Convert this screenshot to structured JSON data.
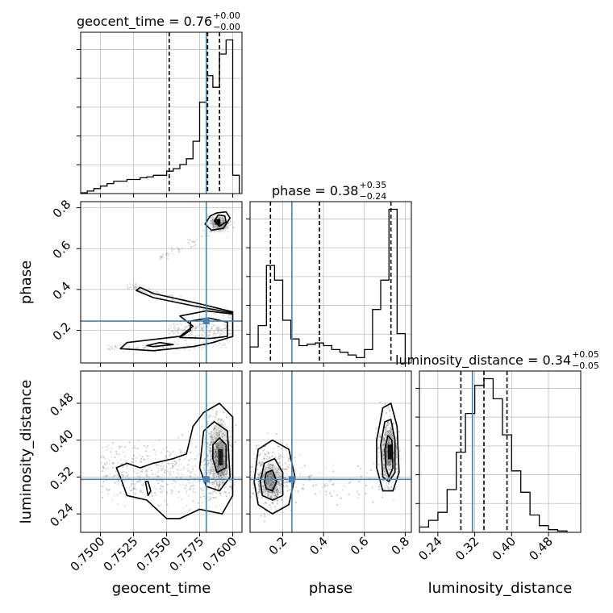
{
  "chart_data": {
    "type": "corner",
    "parameters": [
      "geocent_time",
      "phase",
      "luminosity_distance"
    ],
    "colors": {
      "truth": "#4682b4",
      "hist": "#000000",
      "grid": "#bdbdbd",
      "quantile": "#000000",
      "scatter": "#7f7f7f"
    },
    "grid": true,
    "titles": [
      {
        "param": "geocent_time",
        "value": "0.76",
        "plus": "+0.00",
        "minus": "−0.00"
      },
      {
        "param": "phase",
        "value": "0.38",
        "plus": "+0.35",
        "minus": "−0.24"
      },
      {
        "param": "luminosity_distance",
        "value": "0.34",
        "plus": "+0.05",
        "minus": "−0.05"
      }
    ],
    "truths": {
      "geocent_time": 0.758,
      "phase": 0.245,
      "luminosity_distance": 0.315
    },
    "axes": {
      "geocent_time": {
        "range": [
          0.7485,
          0.7607
        ],
        "ticks": [
          0.75,
          0.7525,
          0.755,
          0.7575,
          0.76
        ],
        "tick_labels": [
          "0.7500",
          "0.7525",
          "0.7550",
          "0.7575",
          "0.7600"
        ]
      },
      "phase": {
        "range": [
          0.04,
          0.83
        ],
        "ticks": [
          0.2,
          0.4,
          0.6,
          0.8
        ],
        "tick_labels": [
          "0.2",
          "0.4",
          "0.6",
          "0.8"
        ]
      },
      "luminosity_distance": {
        "range": [
          0.2,
          0.55
        ],
        "ticks": [
          0.24,
          0.32,
          0.4,
          0.48
        ],
        "tick_labels": [
          "0.24",
          "0.32",
          "0.40",
          "0.48"
        ]
      }
    },
    "histograms": {
      "geocent_time": {
        "bin_edges": [
          0.7485,
          0.749,
          0.7495,
          0.75,
          0.7505,
          0.751,
          0.7515,
          0.752,
          0.7525,
          0.753,
          0.7535,
          0.754,
          0.7545,
          0.755,
          0.7555,
          0.756,
          0.7565,
          0.757,
          0.7575,
          0.758,
          0.7585,
          0.759,
          0.7595,
          0.76,
          0.7605
        ],
        "counts": [
          1,
          3,
          6,
          9,
          12,
          15,
          15,
          17,
          17,
          19,
          20,
          22,
          22,
          27,
          30,
          35,
          42,
          63,
          110,
          142,
          128,
          168,
          185,
          22
        ],
        "quantiles": [
          0.7552,
          0.7581,
          0.759
        ]
      },
      "phase": {
        "bin_edges": [
          0.04,
          0.08,
          0.12,
          0.16,
          0.2,
          0.24,
          0.28,
          0.32,
          0.36,
          0.4,
          0.44,
          0.48,
          0.52,
          0.56,
          0.6,
          0.64,
          0.68,
          0.72,
          0.76,
          0.8
        ],
        "counts": [
          12,
          28,
          73,
          62,
          32,
          18,
          13,
          14,
          15,
          13,
          10,
          8,
          6,
          4,
          10,
          40,
          62,
          115,
          22
        ],
        "quantiles": [
          0.14,
          0.38,
          0.73
        ]
      },
      "luminosity_distance": {
        "bin_edges": [
          0.2,
          0.22,
          0.24,
          0.26,
          0.28,
          0.3,
          0.32,
          0.34,
          0.36,
          0.38,
          0.4,
          0.42,
          0.44,
          0.46,
          0.48,
          0.5,
          0.52
        ],
        "counts": [
          4,
          9,
          15,
          32,
          60,
          89,
          110,
          115,
          100,
          73,
          46,
          30,
          13,
          5,
          2,
          1
        ],
        "quantiles": [
          0.29,
          0.34,
          0.39
        ]
      }
    },
    "contours": {
      "phase_vs_geocent_time": [
        [
          [
            0.7583,
            0.76
          ],
          [
            0.7588,
            0.775
          ],
          [
            0.7595,
            0.78
          ],
          [
            0.7598,
            0.75
          ],
          [
            0.7593,
            0.7
          ],
          [
            0.7584,
            0.69
          ],
          [
            0.7579,
            0.72
          ],
          [
            0.7583,
            0.76
          ]
        ],
        [
          [
            0.7586,
            0.735
          ],
          [
            0.7589,
            0.765
          ],
          [
            0.7594,
            0.76
          ],
          [
            0.7595,
            0.73
          ],
          [
            0.759,
            0.71
          ],
          [
            0.7586,
            0.735
          ]
        ],
        [
          [
            0.7527,
            0.395
          ],
          [
            0.753,
            0.41
          ],
          [
            0.754,
            0.38
          ],
          [
            0.7575,
            0.33
          ],
          [
            0.76,
            0.29
          ],
          [
            0.76,
            0.285
          ],
          [
            0.757,
            0.32
          ],
          [
            0.754,
            0.36
          ],
          [
            0.7527,
            0.395
          ]
        ],
        [
          [
            0.756,
            0.27
          ],
          [
            0.758,
            0.295
          ],
          [
            0.76,
            0.28
          ],
          [
            0.76,
            0.17
          ],
          [
            0.7585,
            0.14
          ],
          [
            0.757,
            0.12
          ],
          [
            0.754,
            0.1
          ],
          [
            0.7515,
            0.11
          ],
          [
            0.752,
            0.14
          ],
          [
            0.756,
            0.17
          ],
          [
            0.757,
            0.22
          ],
          [
            0.756,
            0.27
          ]
        ],
        [
          [
            0.7568,
            0.245
          ],
          [
            0.7582,
            0.26
          ],
          [
            0.7596,
            0.24
          ],
          [
            0.7596,
            0.17
          ],
          [
            0.7583,
            0.16
          ],
          [
            0.756,
            0.165
          ],
          [
            0.7568,
            0.2
          ],
          [
            0.7568,
            0.245
          ]
        ],
        [
          [
            0.754,
            0.12
          ],
          [
            0.7555,
            0.13
          ],
          [
            0.7545,
            0.14
          ],
          [
            0.7535,
            0.125
          ],
          [
            0.754,
            0.12
          ]
        ]
      ],
      "luminosity_distance_vs_geocent_time": [
        [
          [
            0.757,
            0.43
          ],
          [
            0.7578,
            0.46
          ],
          [
            0.759,
            0.48
          ],
          [
            0.76,
            0.45
          ],
          [
            0.76,
            0.28
          ],
          [
            0.7592,
            0.24
          ],
          [
            0.7575,
            0.25
          ],
          [
            0.756,
            0.23
          ],
          [
            0.755,
            0.23
          ],
          [
            0.7535,
            0.27
          ],
          [
            0.752,
            0.28
          ],
          [
            0.7515,
            0.32
          ],
          [
            0.7512,
            0.34
          ],
          [
            0.752,
            0.35
          ],
          [
            0.753,
            0.34
          ],
          [
            0.754,
            0.35
          ],
          [
            0.7555,
            0.36
          ],
          [
            0.7565,
            0.37
          ],
          [
            0.757,
            0.43
          ]
        ],
        [
          [
            0.7578,
            0.42
          ],
          [
            0.7586,
            0.44
          ],
          [
            0.7596,
            0.42
          ],
          [
            0.7598,
            0.32
          ],
          [
            0.759,
            0.29
          ],
          [
            0.758,
            0.3
          ],
          [
            0.7575,
            0.34
          ],
          [
            0.7578,
            0.42
          ]
        ],
        [
          [
            0.7585,
            0.39
          ],
          [
            0.759,
            0.405
          ],
          [
            0.7595,
            0.39
          ],
          [
            0.7595,
            0.34
          ],
          [
            0.7588,
            0.33
          ],
          [
            0.7585,
            0.36
          ],
          [
            0.7585,
            0.39
          ]
        ],
        [
          [
            0.7534,
            0.31
          ],
          [
            0.7536,
            0.28
          ],
          [
            0.7538,
            0.29
          ],
          [
            0.7536,
            0.31
          ],
          [
            0.7534,
            0.31
          ]
        ]
      ],
      "luminosity_distance_vs_phase": [
        [
          [
            0.06,
            0.31
          ],
          [
            0.08,
            0.38
          ],
          [
            0.15,
            0.4
          ],
          [
            0.23,
            0.38
          ],
          [
            0.26,
            0.32
          ],
          [
            0.23,
            0.26
          ],
          [
            0.15,
            0.24
          ],
          [
            0.08,
            0.26
          ],
          [
            0.06,
            0.31
          ]
        ],
        [
          [
            0.09,
            0.31
          ],
          [
            0.11,
            0.35
          ],
          [
            0.16,
            0.36
          ],
          [
            0.2,
            0.33
          ],
          [
            0.2,
            0.28
          ],
          [
            0.15,
            0.27
          ],
          [
            0.1,
            0.28
          ],
          [
            0.09,
            0.31
          ]
        ],
        [
          [
            0.11,
            0.31
          ],
          [
            0.12,
            0.33
          ],
          [
            0.15,
            0.335
          ],
          [
            0.17,
            0.31
          ],
          [
            0.15,
            0.29
          ],
          [
            0.12,
            0.295
          ],
          [
            0.11,
            0.31
          ]
        ],
        [
          [
            0.66,
            0.4
          ],
          [
            0.69,
            0.47
          ],
          [
            0.73,
            0.48
          ],
          [
            0.76,
            0.43
          ],
          [
            0.77,
            0.33
          ],
          [
            0.74,
            0.29
          ],
          [
            0.69,
            0.29
          ],
          [
            0.66,
            0.34
          ],
          [
            0.66,
            0.4
          ]
        ],
        [
          [
            0.68,
            0.39
          ],
          [
            0.7,
            0.44
          ],
          [
            0.73,
            0.445
          ],
          [
            0.75,
            0.4
          ],
          [
            0.75,
            0.33
          ],
          [
            0.72,
            0.31
          ],
          [
            0.69,
            0.32
          ],
          [
            0.68,
            0.39
          ]
        ],
        [
          [
            0.7,
            0.38
          ],
          [
            0.715,
            0.41
          ],
          [
            0.735,
            0.4
          ],
          [
            0.74,
            0.34
          ],
          [
            0.72,
            0.32
          ],
          [
            0.705,
            0.34
          ],
          [
            0.7,
            0.38
          ]
        ]
      ]
    }
  }
}
